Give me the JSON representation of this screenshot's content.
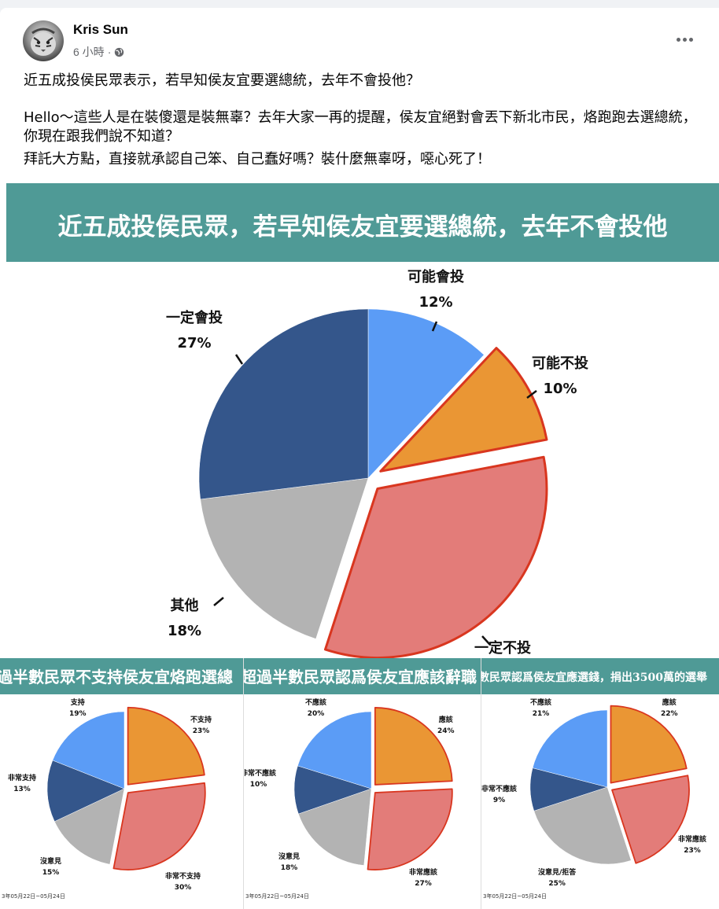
{
  "post": {
    "author": "Kris Sun",
    "time": "6 小時",
    "separator": "·",
    "paragraphs": [
      "近五成投侯民眾表示，若早知侯友宜要選總統，去年不會投他？",
      "Hello～這些人是在裝傻還是裝無辜？去年大家一再的提醒，侯友宜絕對會丟下新北市民，烙跑跑去選總統，你現在跟我們說不知道？",
      "拜託大方點，直接就承認自己笨、自己蠢好嗎？裝什麼無辜呀，噁心死了！"
    ]
  },
  "icons": {
    "avatar": "tiger-avatar",
    "privacy": "globe-icon",
    "more": "more-options-icon"
  },
  "colors": {
    "banner": "#4f9a96",
    "dark_blue": "#34568b",
    "light_blue": "#5b9cf6",
    "orange": "#ea9634",
    "pink": "#e37c79",
    "gray": "#b3b3b3",
    "highlight": "#d9361f"
  },
  "chart_data": [
    {
      "type": "pie",
      "title": "近五成投侯民眾，若早知侯友宜要選總統，去年不會投他",
      "slices": [
        {
          "label": "可能會投",
          "value": 12,
          "value_label": "12%",
          "color": "#5b9cf6"
        },
        {
          "label": "可能不投",
          "value": 10,
          "value_label": "10%",
          "color": "#ea9634",
          "exploded": true
        },
        {
          "label": "一定不投",
          "value": 33,
          "value_label": "",
          "color": "#e37c79",
          "exploded": true
        },
        {
          "label": "其他",
          "value": 18,
          "value_label": "18%",
          "color": "#b3b3b3"
        },
        {
          "label": "一定會投",
          "value": 27,
          "value_label": "27%",
          "color": "#34568b"
        }
      ]
    },
    {
      "type": "pie",
      "title": "過半數民眾不支持侯友宜烙跑選總",
      "date": "3年05月22日~05月24日",
      "slices": [
        {
          "label": "不支持",
          "value": 23,
          "value_label": "23%",
          "color": "#ea9634",
          "exploded": true
        },
        {
          "label": "非常不支持",
          "value": 30,
          "value_label": "30%",
          "color": "#e37c79",
          "exploded": true
        },
        {
          "label": "沒意見",
          "value": 15,
          "value_label": "15%",
          "color": "#b3b3b3"
        },
        {
          "label": "非常支持",
          "value": 13,
          "value_label": "13%",
          "color": "#34568b"
        },
        {
          "label": "支持",
          "value": 19,
          "value_label": "19%",
          "color": "#5b9cf6"
        }
      ]
    },
    {
      "type": "pie",
      "title": "超過半數民眾認爲侯友宜應該辭職",
      "date": "3年05月22日~05月24日",
      "slices": [
        {
          "label": "應該",
          "value": 24,
          "value_label": "24%",
          "color": "#ea9634",
          "exploded": true
        },
        {
          "label": "非常應該",
          "value": 27,
          "value_label": "27%",
          "color": "#e37c79",
          "exploded": true
        },
        {
          "label": "沒意見",
          "value": 18,
          "value_label": "18%",
          "color": "#b3b3b3"
        },
        {
          "label": "非常不應該",
          "value": 10,
          "value_label": "10%",
          "color": "#34568b"
        },
        {
          "label": "不應該",
          "value": 20,
          "value_label": "20%",
          "color": "#5b9cf6"
        }
      ]
    },
    {
      "type": "pie",
      "title": "數民眾認爲侯友宜應選錢，捐出3500萬的選舉",
      "date": "3年05月22日~05月24日",
      "slices": [
        {
          "label": "應該",
          "value": 22,
          "value_label": "22%",
          "color": "#ea9634",
          "exploded": true
        },
        {
          "label": "非常應該",
          "value": 23,
          "value_label": "23%",
          "color": "#e37c79",
          "exploded": true
        },
        {
          "label": "沒意見/拒答",
          "value": 25,
          "value_label": "25%",
          "color": "#b3b3b3"
        },
        {
          "label": "非常不應該",
          "value": 9,
          "value_label": "9%",
          "color": "#34568b"
        },
        {
          "label": "不應該",
          "value": 21,
          "value_label": "21%",
          "color": "#5b9cf6"
        }
      ]
    }
  ]
}
